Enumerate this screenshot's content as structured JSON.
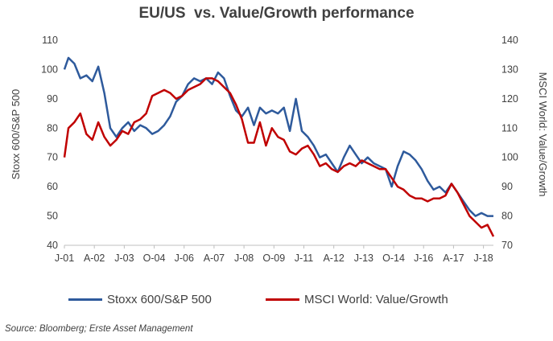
{
  "chart_data": {
    "type": "line",
    "title": "EU/US  vs. Value/Growth performance",
    "ylabel_left": "Stoxx 600/S&P 500",
    "ylabel_right": "MSCI World: Value/Growth",
    "ylim_left": [
      40,
      110
    ],
    "ylim_right": [
      70,
      140
    ],
    "yticks_left": [
      40,
      50,
      60,
      70,
      80,
      90,
      100,
      110
    ],
    "yticks_right": [
      70,
      80,
      90,
      100,
      110,
      120,
      130,
      140
    ],
    "x_range": [
      "2001-01",
      "2018-12"
    ],
    "xtick_labels": [
      "J-01",
      "A-02",
      "J-03",
      "O-04",
      "J-06",
      "A-07",
      "J-08",
      "O-09",
      "J-11",
      "A-12",
      "J-13",
      "O-14",
      "J-16",
      "A-17",
      "J-18"
    ],
    "xtick_dates": [
      "2001-01",
      "2002-04",
      "2003-07",
      "2004-10",
      "2006-01",
      "2007-04",
      "2008-07",
      "2009-10",
      "2011-01",
      "2012-04",
      "2013-07",
      "2014-10",
      "2016-01",
      "2017-04",
      "2018-07"
    ],
    "legend_position": "bottom",
    "grid": false,
    "series": [
      {
        "name": "Stoxx 600/S&P 500",
        "axis": "left",
        "color": "#2E5A9C",
        "points": [
          [
            "2001-01",
            100
          ],
          [
            "2001-03",
            104
          ],
          [
            "2001-06",
            102
          ],
          [
            "2001-09",
            97
          ],
          [
            "2001-12",
            98
          ],
          [
            "2002-03",
            96
          ],
          [
            "2002-06",
            101
          ],
          [
            "2002-09",
            92
          ],
          [
            "2002-12",
            80
          ],
          [
            "2003-03",
            77
          ],
          [
            "2003-06",
            80
          ],
          [
            "2003-09",
            82
          ],
          [
            "2003-12",
            79
          ],
          [
            "2004-03",
            81
          ],
          [
            "2004-06",
            80
          ],
          [
            "2004-09",
            78
          ],
          [
            "2004-12",
            79
          ],
          [
            "2005-03",
            81
          ],
          [
            "2005-06",
            84
          ],
          [
            "2005-09",
            89
          ],
          [
            "2005-12",
            91
          ],
          [
            "2006-03",
            95
          ],
          [
            "2006-06",
            97
          ],
          [
            "2006-09",
            96
          ],
          [
            "2006-12",
            97
          ],
          [
            "2007-03",
            95
          ],
          [
            "2007-06",
            99
          ],
          [
            "2007-09",
            97
          ],
          [
            "2007-12",
            91
          ],
          [
            "2008-03",
            86
          ],
          [
            "2008-06",
            84
          ],
          [
            "2008-09",
            87
          ],
          [
            "2008-12",
            81
          ],
          [
            "2009-03",
            87
          ],
          [
            "2009-06",
            85
          ],
          [
            "2009-09",
            86
          ],
          [
            "2009-12",
            85
          ],
          [
            "2010-03",
            87
          ],
          [
            "2010-06",
            79
          ],
          [
            "2010-09",
            90
          ],
          [
            "2010-12",
            79
          ],
          [
            "2011-03",
            77
          ],
          [
            "2011-06",
            74
          ],
          [
            "2011-09",
            70
          ],
          [
            "2011-12",
            71
          ],
          [
            "2012-03",
            68
          ],
          [
            "2012-06",
            65
          ],
          [
            "2012-09",
            70
          ],
          [
            "2012-12",
            74
          ],
          [
            "2013-03",
            71
          ],
          [
            "2013-06",
            68
          ],
          [
            "2013-09",
            70
          ],
          [
            "2013-12",
            68
          ],
          [
            "2014-03",
            67
          ],
          [
            "2014-06",
            66
          ],
          [
            "2014-09",
            60
          ],
          [
            "2014-12",
            67
          ],
          [
            "2015-03",
            72
          ],
          [
            "2015-06",
            71
          ],
          [
            "2015-09",
            69
          ],
          [
            "2015-12",
            66
          ],
          [
            "2016-03",
            62
          ],
          [
            "2016-06",
            59
          ],
          [
            "2016-09",
            60
          ],
          [
            "2016-12",
            58
          ],
          [
            "2017-03",
            61
          ],
          [
            "2017-06",
            58
          ],
          [
            "2017-09",
            55
          ],
          [
            "2017-12",
            52
          ],
          [
            "2018-03",
            50
          ],
          [
            "2018-06",
            51
          ],
          [
            "2018-09",
            50
          ],
          [
            "2018-12",
            50
          ]
        ]
      },
      {
        "name": "MSCI World: Value/Growth",
        "axis": "right",
        "color": "#C00000",
        "points": [
          [
            "2001-01",
            100
          ],
          [
            "2001-03",
            110
          ],
          [
            "2001-06",
            112
          ],
          [
            "2001-09",
            115
          ],
          [
            "2001-12",
            108
          ],
          [
            "2002-03",
            106
          ],
          [
            "2002-06",
            112
          ],
          [
            "2002-09",
            107
          ],
          [
            "2002-12",
            104
          ],
          [
            "2003-03",
            106
          ],
          [
            "2003-06",
            109
          ],
          [
            "2003-09",
            108
          ],
          [
            "2003-12",
            112
          ],
          [
            "2004-03",
            113
          ],
          [
            "2004-06",
            115
          ],
          [
            "2004-09",
            121
          ],
          [
            "2004-12",
            122
          ],
          [
            "2005-03",
            123
          ],
          [
            "2005-06",
            122
          ],
          [
            "2005-09",
            120
          ],
          [
            "2005-12",
            121
          ],
          [
            "2006-03",
            123
          ],
          [
            "2006-06",
            124
          ],
          [
            "2006-09",
            125
          ],
          [
            "2006-12",
            127
          ],
          [
            "2007-03",
            127
          ],
          [
            "2007-06",
            126
          ],
          [
            "2007-09",
            124
          ],
          [
            "2007-12",
            122
          ],
          [
            "2008-03",
            118
          ],
          [
            "2008-06",
            113
          ],
          [
            "2008-09",
            105
          ],
          [
            "2008-12",
            105
          ],
          [
            "2009-03",
            112
          ],
          [
            "2009-06",
            104
          ],
          [
            "2009-09",
            110
          ],
          [
            "2009-12",
            107
          ],
          [
            "2010-03",
            106
          ],
          [
            "2010-06",
            102
          ],
          [
            "2010-09",
            101
          ],
          [
            "2010-12",
            103
          ],
          [
            "2011-03",
            104
          ],
          [
            "2011-06",
            101
          ],
          [
            "2011-09",
            97
          ],
          [
            "2011-12",
            98
          ],
          [
            "2012-03",
            96
          ],
          [
            "2012-06",
            95
          ],
          [
            "2012-09",
            97
          ],
          [
            "2012-12",
            98
          ],
          [
            "2013-03",
            97
          ],
          [
            "2013-06",
            99
          ],
          [
            "2013-09",
            98
          ],
          [
            "2013-12",
            97
          ],
          [
            "2014-03",
            96
          ],
          [
            "2014-06",
            96
          ],
          [
            "2014-09",
            93
          ],
          [
            "2014-12",
            90
          ],
          [
            "2015-03",
            89
          ],
          [
            "2015-06",
            87
          ],
          [
            "2015-09",
            86
          ],
          [
            "2015-12",
            86
          ],
          [
            "2016-03",
            85
          ],
          [
            "2016-06",
            86
          ],
          [
            "2016-09",
            86
          ],
          [
            "2016-12",
            87
          ],
          [
            "2017-03",
            91
          ],
          [
            "2017-06",
            88
          ],
          [
            "2017-09",
            84
          ],
          [
            "2017-12",
            80
          ],
          [
            "2018-03",
            78
          ],
          [
            "2018-06",
            76
          ],
          [
            "2018-09",
            77
          ],
          [
            "2018-12",
            73
          ]
        ]
      }
    ]
  },
  "source": "Source: Bloomberg; Erste Asset Management"
}
